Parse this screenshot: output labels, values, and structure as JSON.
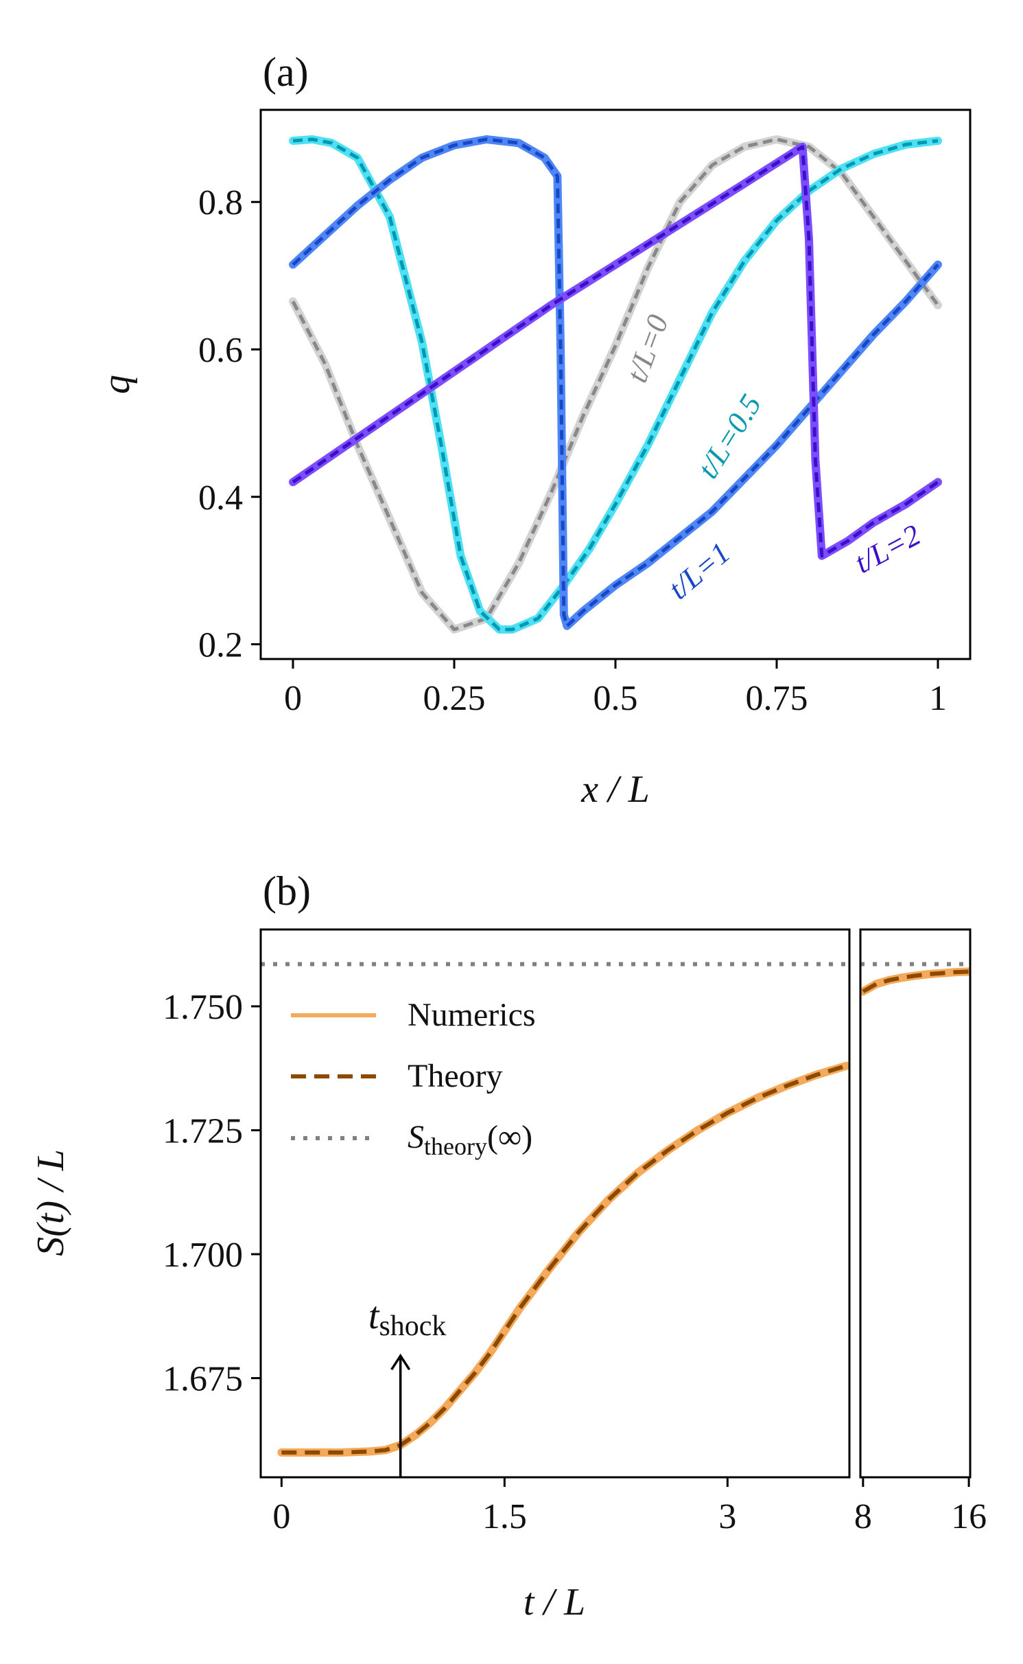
{
  "chart_data": [
    {
      "panel_label": "(a)",
      "type": "line",
      "xlabel": "x / L",
      "ylabel": "q",
      "xlim": [
        -0.05,
        1.05
      ],
      "ylim": [
        0.18,
        0.925
      ],
      "xticks": [
        0,
        0.25,
        0.5,
        0.75,
        1
      ],
      "xtick_labels": [
        "0",
        "0.25",
        "0.5",
        "0.75",
        "1"
      ],
      "yticks": [
        0.2,
        0.4,
        0.6,
        0.8
      ],
      "ytick_labels": [
        "0.2",
        "0.4",
        "0.6",
        "0.8"
      ],
      "series": [
        {
          "label": "t/L=0",
          "color": "#888888",
          "numeric_color": "#d3d3d3",
          "x": [
            0,
            0.05,
            0.1,
            0.15,
            0.2,
            0.25,
            0.3,
            0.35,
            0.4,
            0.45,
            0.5,
            0.55,
            0.6,
            0.65,
            0.7,
            0.75,
            0.8,
            0.85,
            0.9,
            0.95,
            1
          ],
          "y": [
            0.665,
            0.58,
            0.47,
            0.37,
            0.27,
            0.22,
            0.235,
            0.31,
            0.405,
            0.51,
            0.605,
            0.71,
            0.8,
            0.85,
            0.875,
            0.885,
            0.875,
            0.84,
            0.78,
            0.72,
            0.66
          ]
        },
        {
          "label": "t/L=0.5",
          "color": "#009ab0",
          "numeric_color": "#4fe0f5",
          "x": [
            0,
            0.03,
            0.06,
            0.1,
            0.15,
            0.2,
            0.23,
            0.26,
            0.29,
            0.32,
            0.34,
            0.38,
            0.42,
            0.46,
            0.5,
            0.55,
            0.6,
            0.65,
            0.7,
            0.75,
            0.8,
            0.85,
            0.9,
            0.95,
            1
          ],
          "y": [
            0.883,
            0.885,
            0.88,
            0.86,
            0.78,
            0.61,
            0.47,
            0.32,
            0.245,
            0.22,
            0.22,
            0.235,
            0.28,
            0.33,
            0.39,
            0.47,
            0.56,
            0.65,
            0.72,
            0.775,
            0.815,
            0.845,
            0.865,
            0.878,
            0.883
          ]
        },
        {
          "label": "t/L=1",
          "color": "#1848c8",
          "numeric_color": "#4f86f5",
          "x": [
            0,
            0.05,
            0.1,
            0.15,
            0.2,
            0.25,
            0.3,
            0.35,
            0.39,
            0.41,
            0.415,
            0.42,
            0.425,
            0.45,
            0.5,
            0.55,
            0.6,
            0.65,
            0.7,
            0.75,
            0.8,
            0.85,
            0.9,
            0.95,
            1
          ],
          "y": [
            0.715,
            0.755,
            0.795,
            0.83,
            0.86,
            0.877,
            0.885,
            0.88,
            0.86,
            0.835,
            0.6,
            0.24,
            0.225,
            0.245,
            0.28,
            0.31,
            0.345,
            0.38,
            0.425,
            0.47,
            0.52,
            0.57,
            0.62,
            0.665,
            0.715
          ]
        },
        {
          "label": "t/L=2",
          "color": "#3d0fc9",
          "numeric_color": "#7b4dff",
          "x": [
            0,
            0.1,
            0.2,
            0.3,
            0.4,
            0.5,
            0.6,
            0.7,
            0.79,
            0.8,
            0.81,
            0.82,
            0.86,
            0.9,
            0.95,
            1
          ],
          "y": [
            0.42,
            0.48,
            0.54,
            0.6,
            0.66,
            0.715,
            0.77,
            0.825,
            0.875,
            0.75,
            0.45,
            0.32,
            0.34,
            0.365,
            0.39,
            0.42
          ]
        }
      ]
    },
    {
      "panel_label": "(b)",
      "type": "line",
      "xlabel": "t / L",
      "ylabel": "S(t) / L",
      "xlim": [
        -0.14,
        3.82
      ],
      "xlim_right": [
        7.8,
        16.1
      ],
      "ylim": [
        1.655,
        1.7655
      ],
      "xticks_left": [
        0,
        1.5,
        3
      ],
      "xtick_labels_left": [
        "0",
        "1.5",
        "3"
      ],
      "xticks_right": [
        8,
        16
      ],
      "xtick_labels_right": [
        "8",
        "16"
      ],
      "yticks": [
        1.675,
        1.7,
        1.725,
        1.75
      ],
      "ytick_labels": [
        "1.675",
        "1.700",
        "1.725",
        "1.750"
      ],
      "legend_position": "upper-left",
      "legend": {
        "numerics": "Numerics",
        "theory": "Theory",
        "asymptote_main": "S",
        "asymptote_sub": "theory",
        "asymptote_arg": "(∞)"
      },
      "annotation": {
        "text_main": "t",
        "text_sub": "shock",
        "x": 0.8,
        "y_tip": 1.6795
      },
      "s_infinity": 1.7585,
      "series": [
        {
          "name": "Numerics",
          "color": "#f5a95a",
          "t": [
            0,
            0.2,
            0.4,
            0.6,
            0.7,
            0.8,
            0.9,
            1.0,
            1.1,
            1.2,
            1.3,
            1.4,
            1.5,
            1.6,
            1.8,
            2.0,
            2.2,
            2.4,
            2.6,
            2.8,
            3.0,
            3.2,
            3.4,
            3.6,
            3.8
          ],
          "s": [
            1.66,
            1.66,
            1.66,
            1.6602,
            1.6605,
            1.6615,
            1.6635,
            1.666,
            1.669,
            1.6725,
            1.676,
            1.68,
            1.6845,
            1.689,
            1.697,
            1.7045,
            1.711,
            1.7165,
            1.721,
            1.725,
            1.7285,
            1.7315,
            1.734,
            1.7362,
            1.738
          ]
        },
        {
          "name": "Numerics (late)",
          "color": "#f5a95a",
          "t": [
            8,
            9,
            10,
            11,
            12,
            13,
            14,
            15,
            16
          ],
          "s": [
            1.753,
            1.7545,
            1.7553,
            1.7558,
            1.7562,
            1.7565,
            1.7567,
            1.7569,
            1.757
          ]
        }
      ],
      "theory_color": "#8b4a00",
      "asymptote_color": "#808080"
    }
  ]
}
